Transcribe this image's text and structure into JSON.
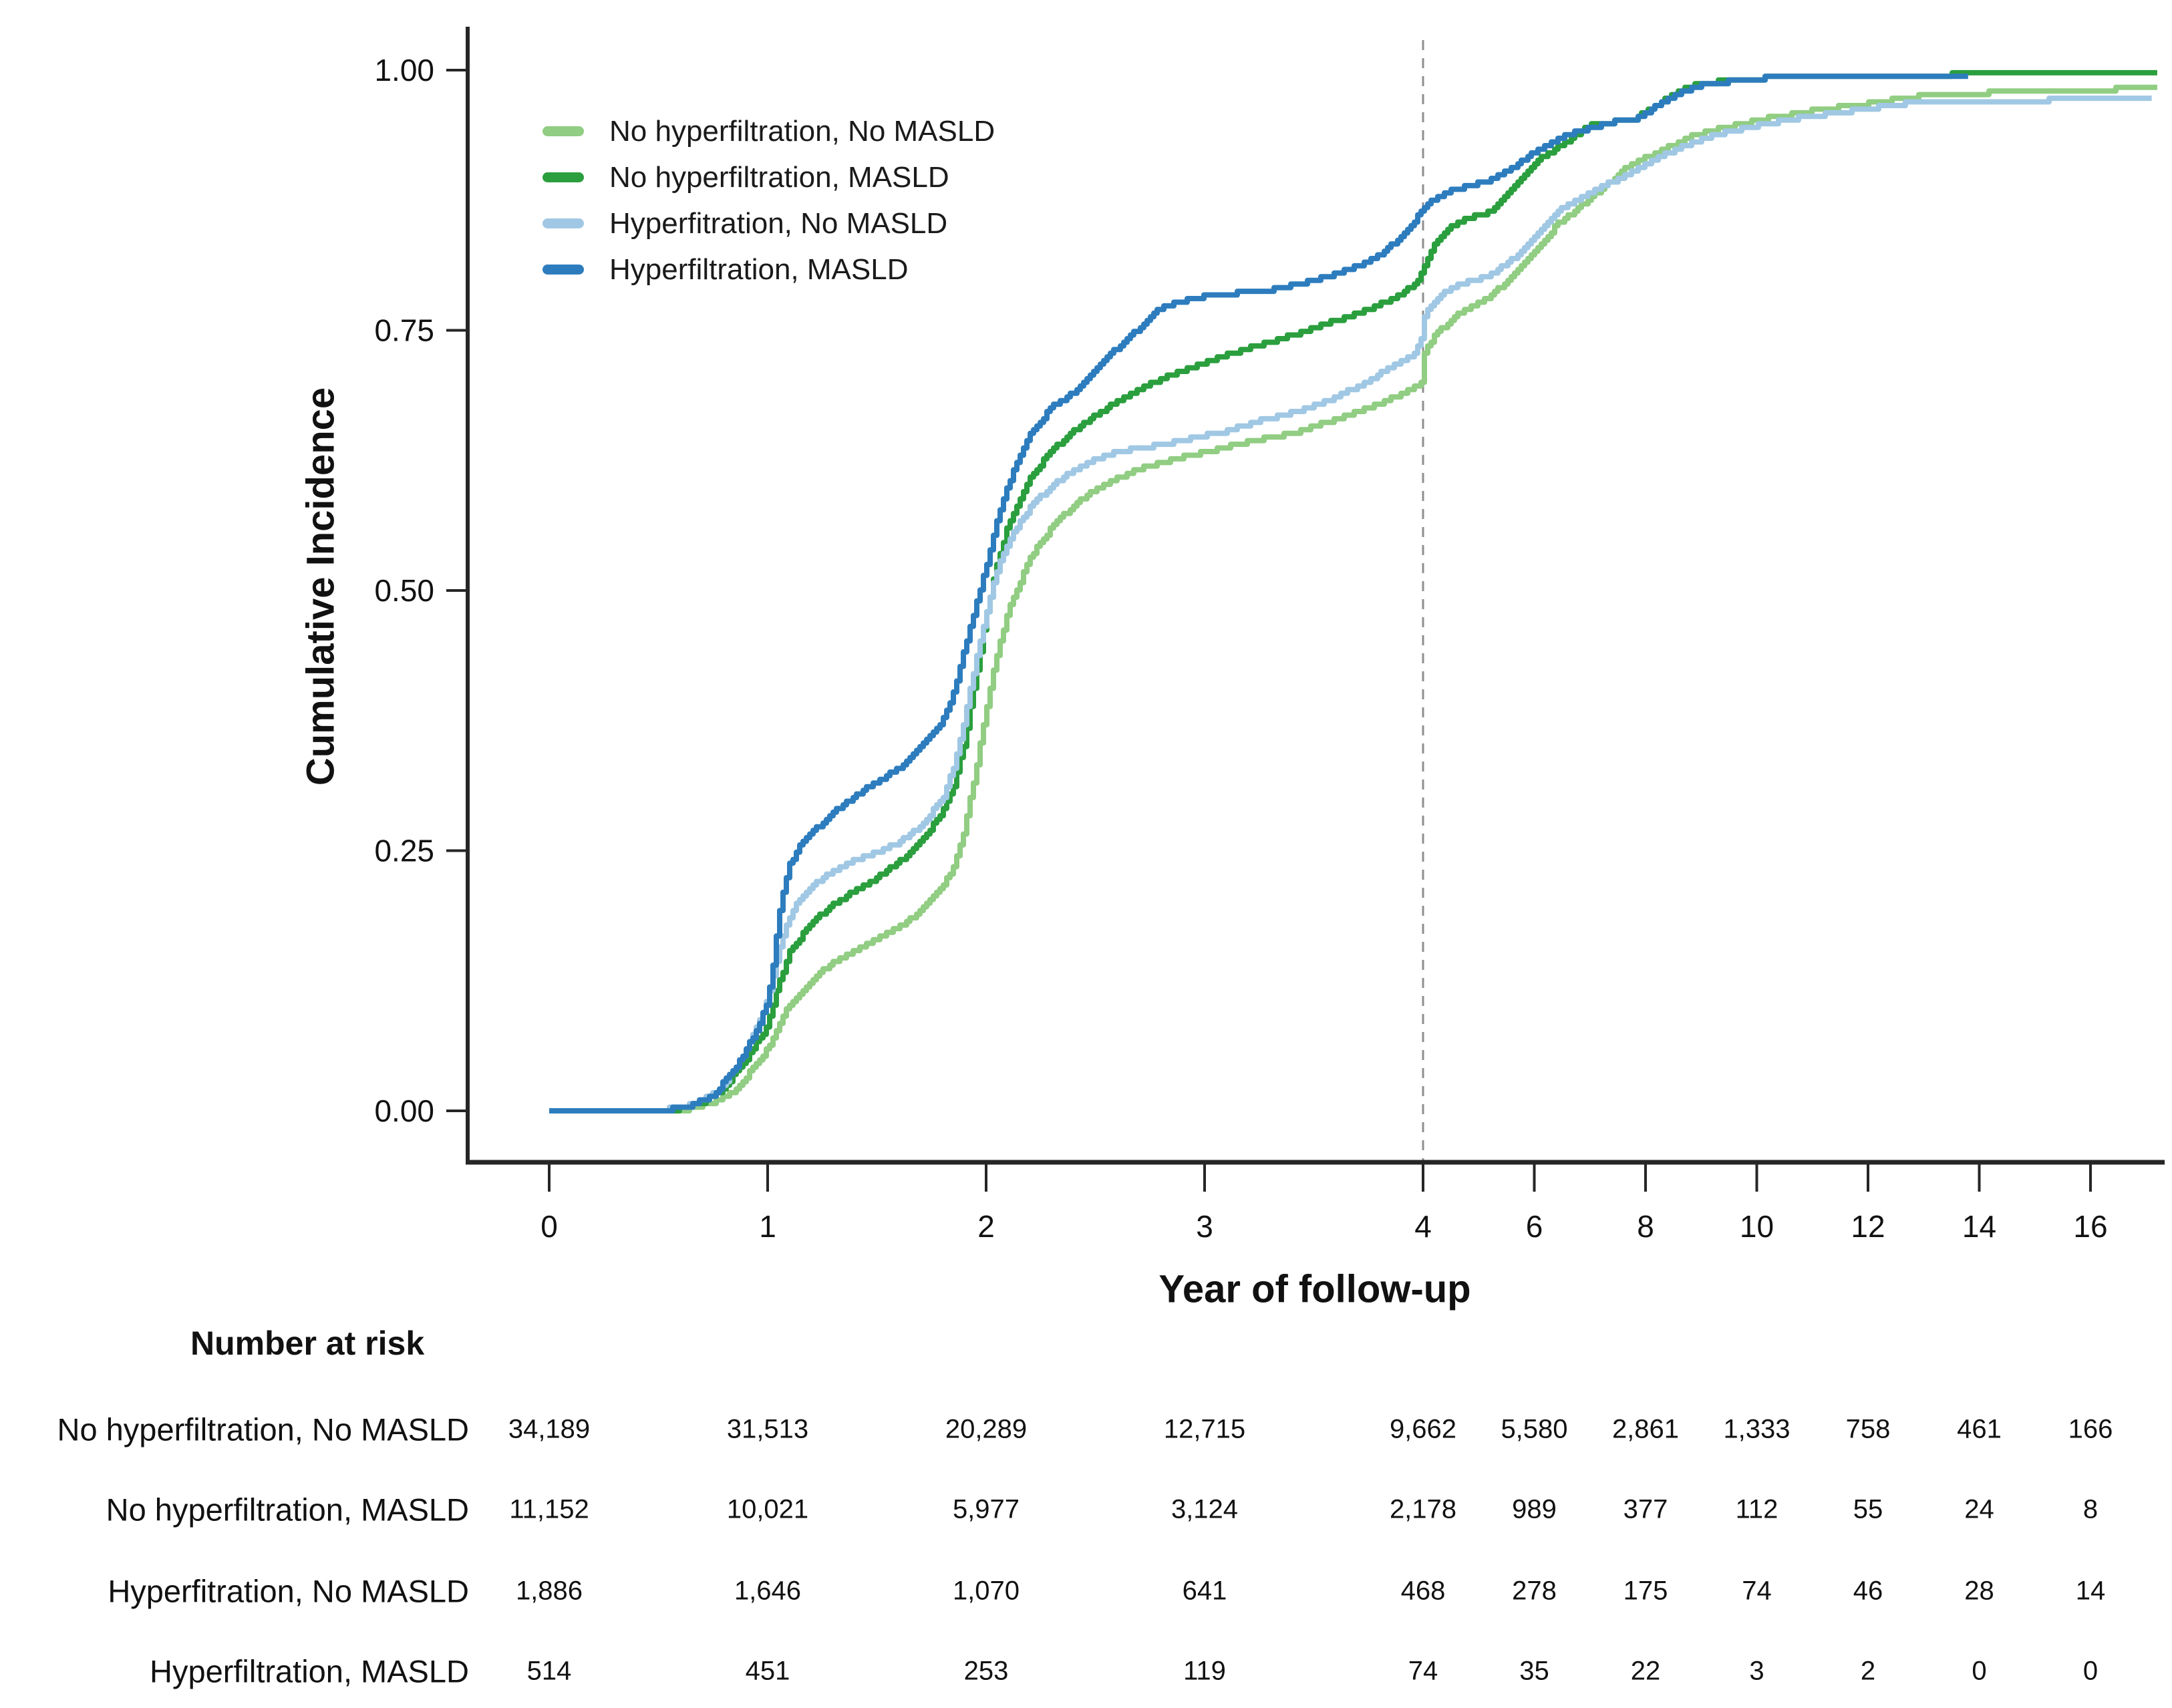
{
  "chart_data": {
    "type": "line",
    "subtype": "cumulative-incidence-step-curves",
    "title": "",
    "xlabel": "Year of follow-up",
    "ylabel": "Cumulative Incidence",
    "x_ticks": [
      0,
      1,
      2,
      3,
      4,
      6,
      8,
      10,
      12,
      14,
      16
    ],
    "y_ticks": [
      {
        "label": "0.00",
        "value": 0
      },
      {
        "label": "0.25",
        "value": 0.25
      },
      {
        "label": "0.50",
        "value": 0.5
      },
      {
        "label": "0.75",
        "value": 0.75
      },
      {
        "label": "1.00",
        "value": 1
      }
    ],
    "ylim": [
      0,
      1
    ],
    "xlim": [
      0,
      17.2
    ],
    "x_scale_note": "linear 0-4, compressed 4x for years 4-16",
    "reference_line_year": 4,
    "reference_line_color": "#8f8f8f",
    "grid": false,
    "legend_position": "top-left-inside",
    "axis_color": "#262626",
    "series": [
      {
        "name": "No hyperfiltration, No MASLD",
        "color": "#91cd82",
        "points": [
          [
            0,
            0
          ],
          [
            0.6,
            0
          ],
          [
            0.75,
            0.008
          ],
          [
            0.85,
            0.02
          ],
          [
            0.95,
            0.045
          ],
          [
            1,
            0.06
          ],
          [
            1.05,
            0.082
          ],
          [
            1.1,
            0.102
          ],
          [
            1.2,
            0.126
          ],
          [
            1.3,
            0.143
          ],
          [
            1.4,
            0.155
          ],
          [
            1.5,
            0.166
          ],
          [
            1.6,
            0.177
          ],
          [
            1.7,
            0.192
          ],
          [
            1.8,
            0.215
          ],
          [
            1.85,
            0.235
          ],
          [
            1.9,
            0.27
          ],
          [
            1.95,
            0.325
          ],
          [
            2,
            0.385
          ],
          [
            2.05,
            0.44
          ],
          [
            2.1,
            0.48
          ],
          [
            2.2,
            0.532
          ],
          [
            2.3,
            0.561
          ],
          [
            2.4,
            0.582
          ],
          [
            2.5,
            0.597
          ],
          [
            2.6,
            0.608
          ],
          [
            2.7,
            0.617
          ],
          [
            2.85,
            0.626
          ],
          [
            3,
            0.633
          ],
          [
            3.1,
            0.638
          ],
          [
            3.25,
            0.645
          ],
          [
            3.4,
            0.651
          ],
          [
            3.55,
            0.661
          ],
          [
            3.7,
            0.672
          ],
          [
            3.8,
            0.68
          ],
          [
            3.9,
            0.689
          ],
          [
            3.99,
            0.699
          ],
          [
            4.02,
            0.728
          ],
          [
            4.1,
            0.737
          ],
          [
            4.3,
            0.75
          ],
          [
            4.6,
            0.765
          ],
          [
            5,
            0.777
          ],
          [
            5.2,
            0.783
          ],
          [
            5.6,
            0.801
          ],
          [
            6,
            0.826
          ],
          [
            6.45,
            0.854
          ],
          [
            6.8,
            0.868
          ],
          [
            7.2,
            0.886
          ],
          [
            7.7,
            0.908
          ],
          [
            8.2,
            0.921
          ],
          [
            8.9,
            0.938
          ],
          [
            9.5,
            0.946
          ],
          [
            10.1,
            0.953
          ],
          [
            11,
            0.961
          ],
          [
            12,
            0.968
          ],
          [
            12.7,
            0.974
          ],
          [
            13.5,
            0.977
          ],
          [
            14.5,
            0.979
          ],
          [
            16,
            0.981
          ],
          [
            17.2,
            0.983
          ]
        ]
      },
      {
        "name": "No hyperfiltration, MASLD",
        "color": "#2b9f3e",
        "points": [
          [
            0,
            0
          ],
          [
            0.55,
            0
          ],
          [
            0.7,
            0.008
          ],
          [
            0.8,
            0.022
          ],
          [
            0.9,
            0.05
          ],
          [
            1,
            0.082
          ],
          [
            1.05,
            0.122
          ],
          [
            1.1,
            0.152
          ],
          [
            1.2,
            0.182
          ],
          [
            1.3,
            0.198
          ],
          [
            1.4,
            0.212
          ],
          [
            1.5,
            0.224
          ],
          [
            1.6,
            0.239
          ],
          [
            1.7,
            0.258
          ],
          [
            1.8,
            0.287
          ],
          [
            1.85,
            0.312
          ],
          [
            1.9,
            0.355
          ],
          [
            1.95,
            0.415
          ],
          [
            2,
            0.475
          ],
          [
            2.05,
            0.527
          ],
          [
            2.1,
            0.562
          ],
          [
            2.2,
            0.608
          ],
          [
            2.3,
            0.635
          ],
          [
            2.4,
            0.653
          ],
          [
            2.5,
            0.668
          ],
          [
            2.6,
            0.682
          ],
          [
            2.7,
            0.694
          ],
          [
            2.85,
            0.708
          ],
          [
            3,
            0.719
          ],
          [
            3.1,
            0.726
          ],
          [
            3.25,
            0.736
          ],
          [
            3.4,
            0.745
          ],
          [
            3.55,
            0.756
          ],
          [
            3.7,
            0.766
          ],
          [
            3.85,
            0.779
          ],
          [
            3.95,
            0.792
          ],
          [
            4,
            0.807
          ],
          [
            4.05,
            0.817
          ],
          [
            4.2,
            0.832
          ],
          [
            4.4,
            0.846
          ],
          [
            4.7,
            0.856
          ],
          [
            5,
            0.861
          ],
          [
            5.2,
            0.864
          ],
          [
            5.6,
            0.886
          ],
          [
            6,
            0.911
          ],
          [
            6.3,
            0.922
          ],
          [
            6.6,
            0.932
          ],
          [
            7,
            0.947
          ],
          [
            7.4,
            0.95
          ],
          [
            7.8,
            0.953
          ],
          [
            8.1,
            0.963
          ],
          [
            8.4,
            0.974
          ],
          [
            8.7,
            0.983
          ],
          [
            9,
            0.987
          ],
          [
            9.5,
            0.99
          ],
          [
            10,
            0.992
          ],
          [
            11,
            0.994
          ],
          [
            12,
            0.995
          ],
          [
            14,
            0.996
          ],
          [
            17.2,
            0.997
          ]
        ]
      },
      {
        "name": "Hyperfitration, No MASLD",
        "color": "#a0c8e4",
        "points": [
          [
            0,
            0
          ],
          [
            0.5,
            0
          ],
          [
            0.65,
            0.006
          ],
          [
            0.78,
            0.02
          ],
          [
            0.88,
            0.05
          ],
          [
            0.95,
            0.08
          ],
          [
            1,
            0.108
          ],
          [
            1.04,
            0.145
          ],
          [
            1.08,
            0.175
          ],
          [
            1.13,
            0.198
          ],
          [
            1.2,
            0.216
          ],
          [
            1.3,
            0.231
          ],
          [
            1.4,
            0.241
          ],
          [
            1.5,
            0.248
          ],
          [
            1.6,
            0.258
          ],
          [
            1.7,
            0.273
          ],
          [
            1.8,
            0.3
          ],
          [
            1.85,
            0.33
          ],
          [
            1.9,
            0.375
          ],
          [
            1.95,
            0.43
          ],
          [
            2,
            0.478
          ],
          [
            2.05,
            0.52
          ],
          [
            2.1,
            0.547
          ],
          [
            2.2,
            0.58
          ],
          [
            2.3,
            0.601
          ],
          [
            2.4,
            0.616
          ],
          [
            2.5,
            0.626
          ],
          [
            2.6,
            0.633
          ],
          [
            2.7,
            0.637
          ],
          [
            2.85,
            0.642
          ],
          [
            3,
            0.649
          ],
          [
            3.1,
            0.653
          ],
          [
            3.25,
            0.663
          ],
          [
            3.4,
            0.671
          ],
          [
            3.55,
            0.681
          ],
          [
            3.7,
            0.696
          ],
          [
            3.8,
            0.708
          ],
          [
            3.9,
            0.721
          ],
          [
            3.96,
            0.728
          ],
          [
            4,
            0.744
          ],
          [
            4.03,
            0.767
          ],
          [
            4.1,
            0.773
          ],
          [
            4.3,
            0.783
          ],
          [
            4.6,
            0.793
          ],
          [
            5,
            0.8
          ],
          [
            5.2,
            0.803
          ],
          [
            5.6,
            0.818
          ],
          [
            6,
            0.84
          ],
          [
            6.45,
            0.866
          ],
          [
            6.8,
            0.877
          ],
          [
            7.2,
            0.888
          ],
          [
            7.7,
            0.9
          ],
          [
            8.2,
            0.916
          ],
          [
            8.9,
            0.932
          ],
          [
            9.5,
            0.941
          ],
          [
            10.1,
            0.948
          ],
          [
            11,
            0.956
          ],
          [
            12,
            0.963
          ],
          [
            12.7,
            0.968
          ],
          [
            14,
            0.97
          ],
          [
            15,
            0.971
          ],
          [
            16,
            0.972
          ],
          [
            17.1,
            0.974
          ]
        ]
      },
      {
        "name": "Hyperfiltration, MASLD",
        "color": "#2d7dbe",
        "points": [
          [
            0,
            0
          ],
          [
            0.5,
            0
          ],
          [
            0.65,
            0.005
          ],
          [
            0.75,
            0.015
          ],
          [
            0.85,
            0.04
          ],
          [
            0.95,
            0.078
          ],
          [
            1,
            0.105
          ],
          [
            1.03,
            0.15
          ],
          [
            1.06,
            0.2
          ],
          [
            1.1,
            0.237
          ],
          [
            1.15,
            0.255
          ],
          [
            1.2,
            0.267
          ],
          [
            1.3,
            0.287
          ],
          [
            1.4,
            0.303
          ],
          [
            1.5,
            0.316
          ],
          [
            1.6,
            0.329
          ],
          [
            1.7,
            0.35
          ],
          [
            1.8,
            0.374
          ],
          [
            1.85,
            0.402
          ],
          [
            1.9,
            0.443
          ],
          [
            1.95,
            0.483
          ],
          [
            2,
            0.523
          ],
          [
            2.05,
            0.567
          ],
          [
            2.1,
            0.602
          ],
          [
            2.2,
            0.651
          ],
          [
            2.3,
            0.676
          ],
          [
            2.4,
            0.691
          ],
          [
            2.5,
            0.713
          ],
          [
            2.6,
            0.733
          ],
          [
            2.7,
            0.752
          ],
          [
            2.8,
            0.772
          ],
          [
            2.95,
            0.781
          ],
          [
            3.1,
            0.785
          ],
          [
            3.3,
            0.789
          ],
          [
            3.45,
            0.795
          ],
          [
            3.55,
            0.801
          ],
          [
            3.7,
            0.812
          ],
          [
            3.8,
            0.822
          ],
          [
            3.9,
            0.84
          ],
          [
            3.97,
            0.858
          ],
          [
            4,
            0.868
          ],
          [
            4.15,
            0.874
          ],
          [
            4.3,
            0.879
          ],
          [
            4.6,
            0.886
          ],
          [
            5,
            0.891
          ],
          [
            5.2,
            0.894
          ],
          [
            5.6,
            0.906
          ],
          [
            6,
            0.921
          ],
          [
            6.3,
            0.931
          ],
          [
            6.6,
            0.938
          ],
          [
            7,
            0.944
          ],
          [
            7.4,
            0.95
          ],
          [
            7.8,
            0.953
          ],
          [
            8.1,
            0.962
          ],
          [
            8.4,
            0.972
          ],
          [
            8.7,
            0.98
          ],
          [
            9,
            0.986
          ],
          [
            9.5,
            0.989
          ],
          [
            10,
            0.992
          ],
          [
            11,
            0.994
          ],
          [
            12,
            0.995
          ],
          [
            13.8,
            0.995
          ]
        ]
      }
    ]
  },
  "risk_table": {
    "title": "Number at risk",
    "columns": [
      0,
      1,
      2,
      3,
      4,
      6,
      8,
      10,
      12,
      14,
      16
    ],
    "rows": [
      {
        "label": "No hyperfiltration, No MASLD",
        "values": [
          "34,189",
          "31,513",
          "20,289",
          "12,715",
          "9,662",
          "5,580",
          "2,861",
          "1,333",
          "758",
          "461",
          "166"
        ]
      },
      {
        "label": "No hyperfiltration, MASLD",
        "values": [
          "11,152",
          "10,021",
          "5,977",
          "3,124",
          "2,178",
          "989",
          "377",
          "112",
          "55",
          "24",
          "8"
        ]
      },
      {
        "label": "Hyperfitration, No MASLD",
        "values": [
          "1,886",
          "1,646",
          "1,070",
          "641",
          "468",
          "278",
          "175",
          "74",
          "46",
          "28",
          "14"
        ]
      },
      {
        "label": "Hyperfiltration, MASLD",
        "values": [
          "514",
          "451",
          "253",
          "119",
          "74",
          "35",
          "22",
          "3",
          "2",
          "0",
          "0"
        ]
      }
    ]
  }
}
